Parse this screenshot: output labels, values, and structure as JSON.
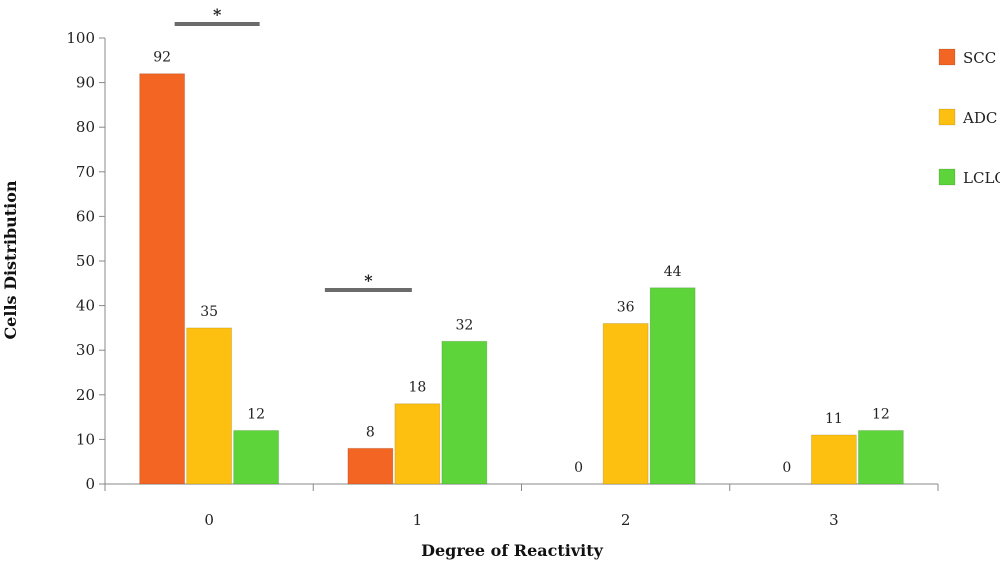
{
  "chart_data": {
    "type": "bar",
    "xlabel": "Degree of Reactivity",
    "ylabel": "Cells Distribution",
    "categories": [
      "0",
      "1",
      "2",
      "3"
    ],
    "ylim": [
      0,
      100
    ],
    "yticks": [
      0,
      10,
      20,
      30,
      40,
      50,
      60,
      70,
      80,
      90,
      100
    ],
    "grid": false,
    "legend_position": "right",
    "series": [
      {
        "name": "SCC",
        "color": "#f26522",
        "values": [
          92,
          8,
          0,
          0
        ]
      },
      {
        "name": "ADC",
        "color": "#fdc010",
        "values": [
          35,
          18,
          36,
          11
        ]
      },
      {
        "name": "LCLC",
        "color": "#5dd43a",
        "values": [
          12,
          32,
          44,
          12
        ]
      }
    ],
    "annotations": [
      {
        "text": "*",
        "category": "0",
        "meaning": "significance bracket"
      },
      {
        "text": "*",
        "category": "1",
        "meaning": "significance bracket"
      }
    ]
  }
}
